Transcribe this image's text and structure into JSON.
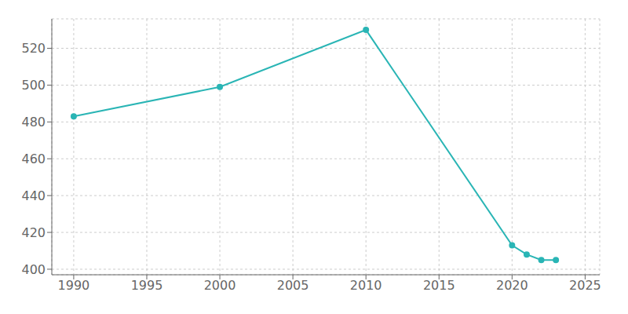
{
  "chart_data": {
    "type": "line",
    "x": [
      1990,
      2000,
      2010,
      2020,
      2021,
      2022,
      2023
    ],
    "values": [
      483,
      499,
      530,
      413,
      408,
      405,
      405
    ],
    "color": "#2ab5b5",
    "marker": "circle",
    "xlim": [
      1988.5,
      2026
    ],
    "ylim": [
      397,
      536
    ],
    "xticks": [
      1990,
      1995,
      2000,
      2005,
      2010,
      2015,
      2020,
      2025
    ],
    "yticks": [
      400,
      420,
      440,
      460,
      480,
      500,
      520
    ],
    "grid": true
  }
}
